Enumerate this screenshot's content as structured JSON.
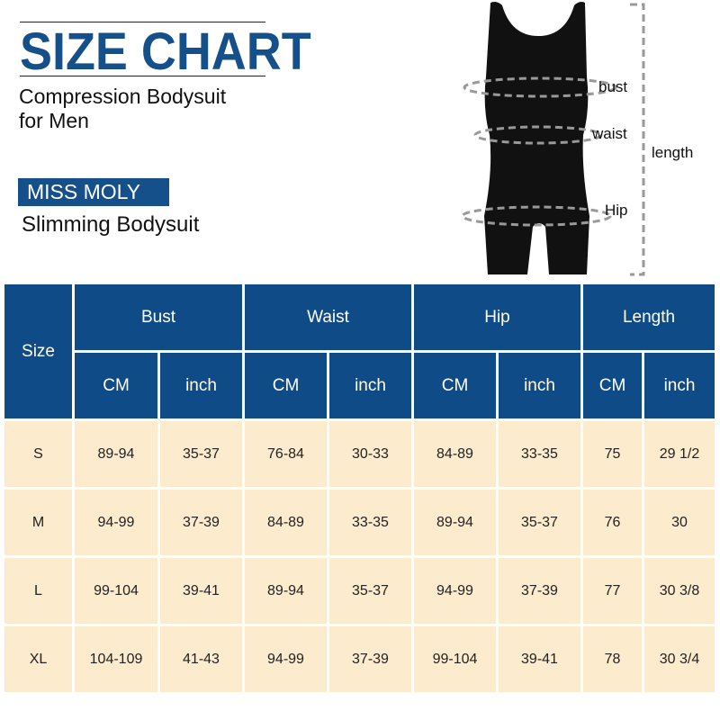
{
  "header": {
    "title": "SIZE CHART",
    "subtitle_line1": "Compression Bodysuit",
    "subtitle_line2": "for Men",
    "brand": "MISS MOLY",
    "tagline": "Slimming Bodysuit"
  },
  "figure": {
    "bust": "bust",
    "waist": "waist",
    "hip": "Hip",
    "length": "length"
  },
  "colors": {
    "header_blue": "#0f4c87",
    "cell_beige": "#fdebcd",
    "title_blue": "#16508a"
  },
  "table": {
    "size_header": "Size",
    "groups": [
      "Bust",
      "Waist",
      "Hip",
      "Length"
    ],
    "units": [
      "CM",
      "inch",
      "CM",
      "inch",
      "CM",
      "inch",
      "CM",
      "inch"
    ],
    "rows": [
      [
        "S",
        "89-94",
        "35-37",
        "76-84",
        "30-33",
        "84-89",
        "33-35",
        "75",
        "29 1/2"
      ],
      [
        "M",
        "94-99",
        "37-39",
        "84-89",
        "33-35",
        "89-94",
        "35-37",
        "76",
        "30"
      ],
      [
        "L",
        "99-104",
        "39-41",
        "89-94",
        "35-37",
        "94-99",
        "37-39",
        "77",
        "30 3/8"
      ],
      [
        "XL",
        "104-109",
        "41-43",
        "94-99",
        "37-39",
        "99-104",
        "39-41",
        "78",
        "30 3/4"
      ]
    ]
  }
}
